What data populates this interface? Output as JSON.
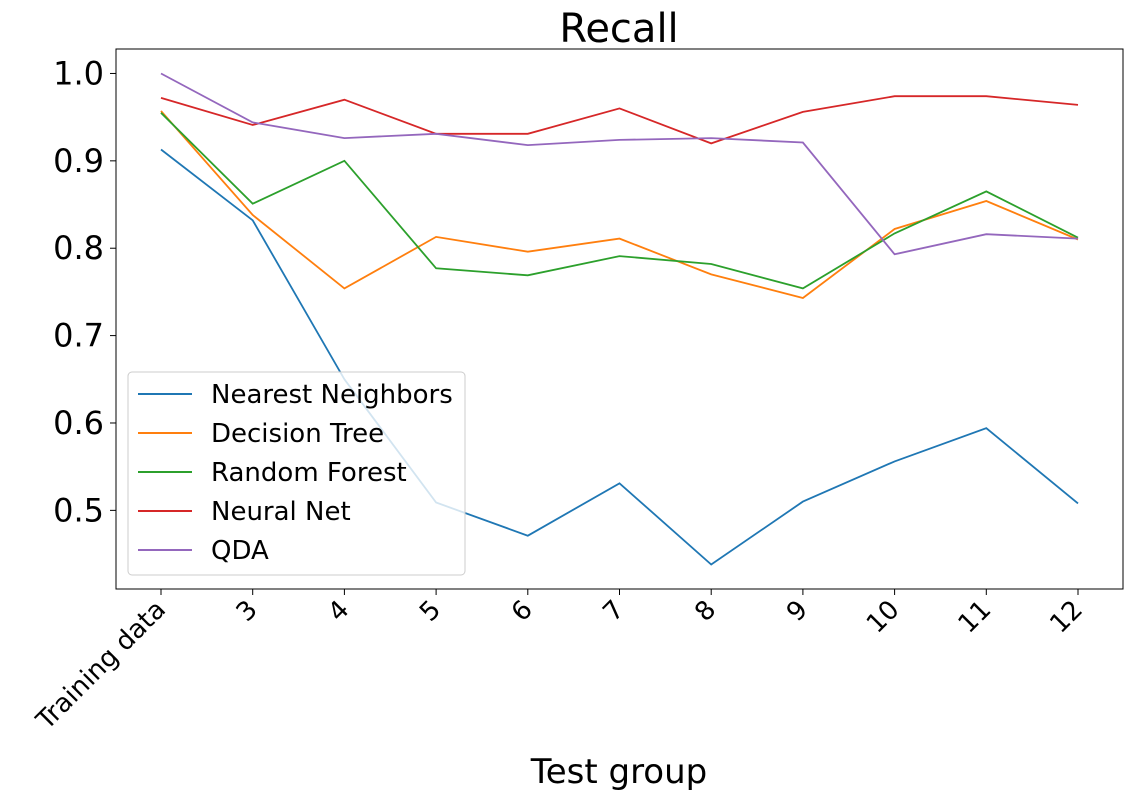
{
  "chart_data": {
    "type": "line",
    "title": "Recall",
    "xlabel": "Test group",
    "ylabel": "",
    "categories": [
      "Training data",
      "3",
      "4",
      "5",
      "6",
      "7",
      "8",
      "9",
      "10",
      "11",
      "12"
    ],
    "ylim": [
      0.41,
      1.028
    ],
    "yticks": [
      0.5,
      0.6,
      0.7,
      0.8,
      0.9,
      1.0
    ],
    "ytick_labels": [
      "0.5",
      "0.6",
      "0.7",
      "0.8",
      "0.9",
      "1.0"
    ],
    "grid": false,
    "legend_position": "lower-left",
    "series": [
      {
        "name": "Nearest Neighbors",
        "color": "#1f77b4",
        "values": [
          0.913,
          0.832,
          0.65,
          0.509,
          0.471,
          0.531,
          0.438,
          0.51,
          0.556,
          0.594,
          0.508
        ]
      },
      {
        "name": "Decision Tree",
        "color": "#ff7f0e",
        "values": [
          0.957,
          0.838,
          0.754,
          0.813,
          0.796,
          0.811,
          0.77,
          0.743,
          0.822,
          0.854,
          0.81
        ]
      },
      {
        "name": "Random Forest",
        "color": "#2ca02c",
        "values": [
          0.955,
          0.851,
          0.9,
          0.777,
          0.769,
          0.791,
          0.782,
          0.754,
          0.817,
          0.865,
          0.812
        ]
      },
      {
        "name": "Neural Net",
        "color": "#d62728",
        "values": [
          0.972,
          0.941,
          0.97,
          0.931,
          0.931,
          0.96,
          0.92,
          0.956,
          0.974,
          0.974,
          0.964
        ]
      },
      {
        "name": "QDA",
        "color": "#9467bd",
        "values": [
          1.0,
          0.944,
          0.926,
          0.931,
          0.918,
          0.924,
          0.926,
          0.921,
          0.793,
          0.816,
          0.811
        ]
      }
    ]
  }
}
